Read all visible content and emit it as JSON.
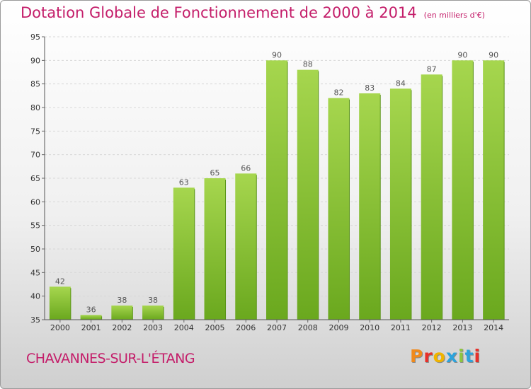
{
  "header": {
    "title": "Dotation Globale de Fonctionnement de 2000 à 2014",
    "subtitle": "(en milliers d'€)"
  },
  "footer": {
    "commune": "CHAVANNES-SUR-L'ÉTANG",
    "logo_text": "Proxiti",
    "logo_colors": [
      "#f08a1c",
      "#e8302a",
      "#f0b400",
      "#2ca3dc",
      "#8dc63f",
      "#2ca3dc",
      "#e8302a"
    ]
  },
  "chart_data": {
    "type": "bar",
    "title": "Dotation Globale de Fonctionnement de 2000 à 2014",
    "subtitle": "(en milliers d'€)",
    "xlabel": "",
    "ylabel": "",
    "categories": [
      "2000",
      "2001",
      "2002",
      "2003",
      "2004",
      "2005",
      "2006",
      "2007",
      "2008",
      "2009",
      "2010",
      "2011",
      "2012",
      "2013",
      "2014"
    ],
    "values": [
      42,
      36,
      38,
      38,
      63,
      65,
      66,
      90,
      88,
      82,
      83,
      84,
      87,
      90,
      90
    ],
    "ylim": [
      35,
      95
    ],
    "yticks": [
      35,
      40,
      45,
      50,
      55,
      60,
      65,
      70,
      75,
      80,
      85,
      90,
      95
    ],
    "grid": true,
    "legend": "none",
    "bar_color": "#7cba2a",
    "bar_color_light": "#a2d24c"
  }
}
